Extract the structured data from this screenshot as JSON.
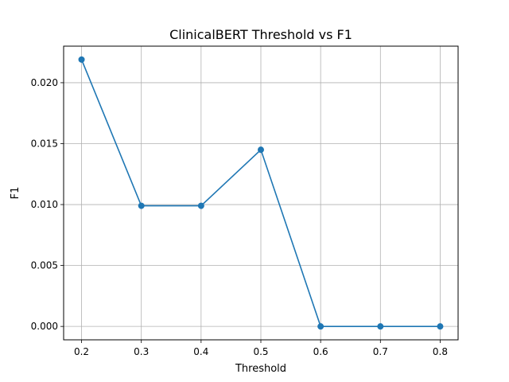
{
  "chart_data": {
    "type": "line",
    "title": "ClinicalBERT Threshold vs F1",
    "xlabel": "Threshold",
    "ylabel": "F1",
    "x": [
      0.2,
      0.3,
      0.4,
      0.5,
      0.6,
      0.7,
      0.8
    ],
    "series": [
      {
        "values": [
          0.0219,
          0.0099,
          0.0099,
          0.0145,
          0.0,
          0.0,
          0.0
        ],
        "color": "#1f77b4",
        "marker": "circle"
      }
    ],
    "xlim": [
      0.17,
      0.83
    ],
    "ylim": [
      -0.0011,
      0.023
    ],
    "xticks": [
      0.2,
      0.3,
      0.4,
      0.5,
      0.6,
      0.7,
      0.8
    ],
    "xtick_labels": [
      "0.2",
      "0.3",
      "0.4",
      "0.5",
      "0.6",
      "0.7",
      "0.8"
    ],
    "yticks": [
      0.0,
      0.005,
      0.01,
      0.015,
      0.02
    ],
    "ytick_labels": [
      "0.000",
      "0.005",
      "0.010",
      "0.015",
      "0.020"
    ],
    "grid": true,
    "legend": "none"
  }
}
